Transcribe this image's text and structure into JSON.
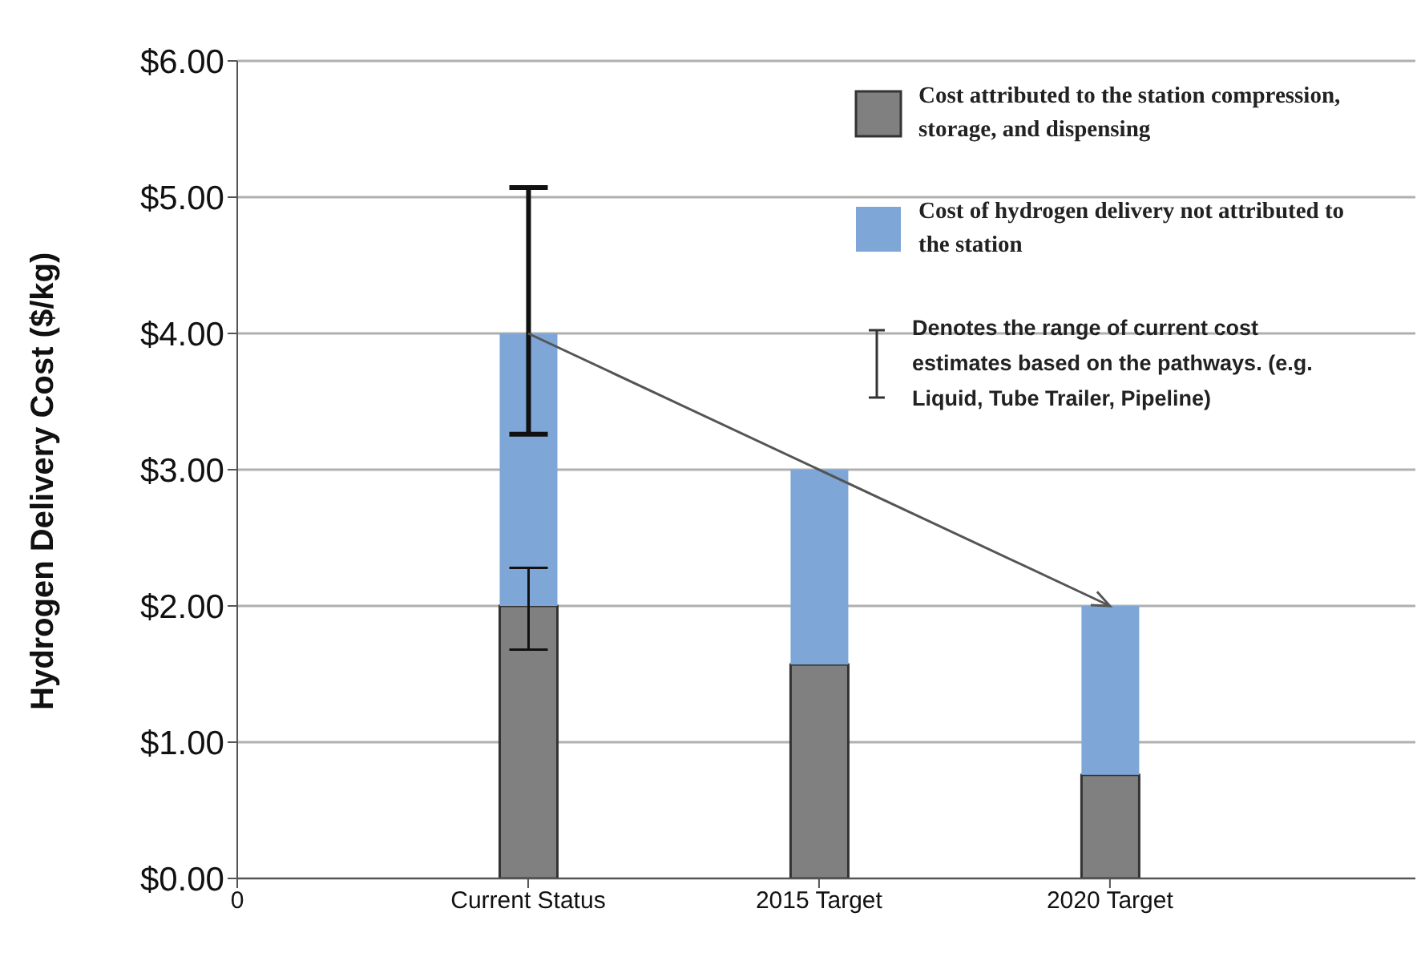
{
  "chart_data": {
    "type": "bar",
    "stacked": true,
    "ylabel": "Hydrogen Delivery Cost ($/kg)",
    "categories": [
      "0",
      "Current Status",
      "2015 Target",
      "2020 Target"
    ],
    "ylim": [
      0,
      6
    ],
    "yticks": [
      {
        "value": 0,
        "label": "$0.00"
      },
      {
        "value": 1,
        "label": "$1.00"
      },
      {
        "value": 2,
        "label": "$2.00"
      },
      {
        "value": 3,
        "label": "$3.00"
      },
      {
        "value": 4,
        "label": "$4.00"
      },
      {
        "value": 5,
        "label": "$5.00"
      },
      {
        "value": 6,
        "label": "$6.00"
      }
    ],
    "grid": "y",
    "legend": "top right",
    "series": [
      {
        "name": "Cost attributed to the station compression, storage, and dispensing",
        "color": "#808080",
        "values": [
          null,
          2.0,
          1.57,
          0.76
        ],
        "errors": [
          null,
          [
            1.68,
            2.28
          ],
          null,
          null
        ]
      },
      {
        "name": "Cost of hydrogen delivery not attributed to the station",
        "color": "#7ea6d6",
        "values": [
          null,
          2.0,
          1.43,
          1.24
        ],
        "errors": [
          null,
          [
            3.26,
            5.07
          ],
          null,
          null
        ]
      }
    ],
    "annotations": [
      "Denotes the range of current cost estimates based on the pathways. (e.g. Liquid, Tube Trailer, Pipeline)"
    ]
  }
}
